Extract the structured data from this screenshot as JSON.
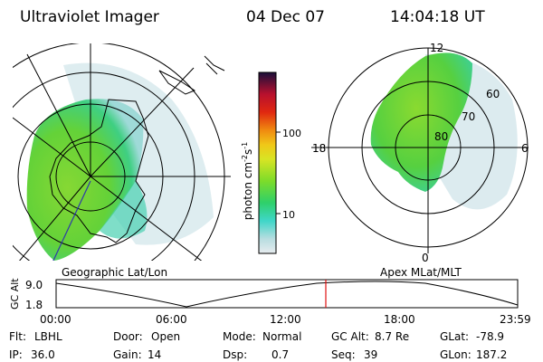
{
  "header": {
    "instrument": "Ultraviolet Imager",
    "date": "04 Dec 07",
    "time": "14:04:18 UT"
  },
  "left_panel": {
    "caption": "Geographic Lat/Lon"
  },
  "right_panel": {
    "caption": "Apex MLat/MLT",
    "mlt_labels": {
      "top": "12",
      "left": "18",
      "right": "6",
      "bottom": "0"
    },
    "lat_labels": [
      "60",
      "70",
      "80"
    ]
  },
  "colorbar": {
    "label": "photon cm",
    "label_sup1": "-2",
    "label_mid": "s",
    "label_sup2": "-1",
    "ticks": [
      "100",
      "10"
    ]
  },
  "altitude_plot": {
    "ylabel": "GC Alt",
    "y_top": "9.0",
    "y_bottom": "1.8",
    "x_ticks": [
      "00:00",
      "06:00",
      "12:00",
      "18:00",
      "23:59"
    ],
    "marker_time": "14:04"
  },
  "status": [
    {
      "label": "Flt:",
      "value": "LBHL"
    },
    {
      "label": "Door:",
      "value": "Open"
    },
    {
      "label": "Mode:",
      "value": "Normal"
    },
    {
      "label": "GC Alt:",
      "value": "8.7 Re"
    },
    {
      "label": "GLat:",
      "value": "-78.9"
    },
    {
      "label": "IP:",
      "value": "36.0"
    },
    {
      "label": "Gain:",
      "value": "14"
    },
    {
      "label": "Dsp:",
      "value": "0.7"
    },
    {
      "label": "Seq:",
      "value": "39"
    },
    {
      "label": "GLon:",
      "value": "187.2"
    }
  ]
}
